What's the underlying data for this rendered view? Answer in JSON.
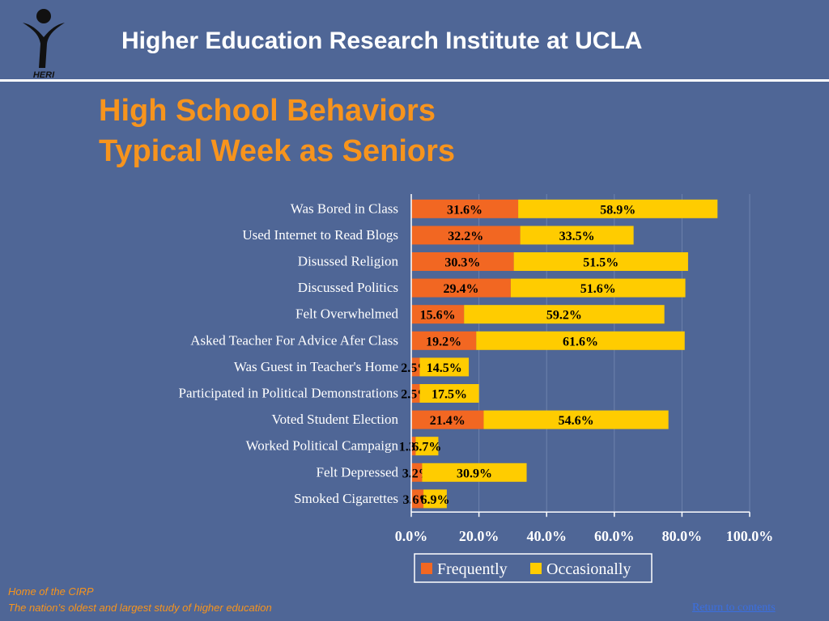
{
  "header": {
    "title": "Higher Education Research Institute at UCLA",
    "logo_text": "HERI"
  },
  "slide": {
    "title_line1": "High School Behaviors",
    "title_line2": "Typical Week as Seniors"
  },
  "colors": {
    "background": "#4f6696",
    "title": "#f7941d",
    "frequently": "#f26722",
    "occasionally": "#ffcc00"
  },
  "chart_data": {
    "type": "bar",
    "orientation": "horizontal",
    "stacked": true,
    "categories": [
      "Was Bored in Class",
      "Used Internet to Read Blogs",
      "Disussed Religion",
      "Discussed Politics",
      "Felt Overwhelmed",
      "Asked Teacher For Advice Afer Class",
      "Was Guest in Teacher's Home",
      "Participated in Political Demonstrations",
      "Voted Student Election",
      "Worked Political Campaign",
      "Felt Depressed",
      "Smoked Cigarettes"
    ],
    "series": [
      {
        "name": "Frequently",
        "values": [
          31.6,
          32.2,
          30.3,
          29.4,
          15.6,
          19.2,
          2.5,
          2.5,
          21.4,
          1.3,
          3.2,
          3.6
        ]
      },
      {
        "name": "Occasionally",
        "values": [
          58.9,
          33.5,
          51.5,
          51.6,
          59.2,
          61.6,
          14.5,
          17.5,
          54.6,
          6.7,
          30.9,
          6.9
        ]
      }
    ],
    "xlim": [
      0,
      100
    ],
    "xticks": [
      "0.0%",
      "20.0%",
      "40.0%",
      "60.0%",
      "80.0%",
      "100.0%"
    ],
    "value_suffix": "%",
    "grid": true,
    "legend_position": "bottom"
  },
  "footer": {
    "line1": "Home of the CIRP",
    "line2": "The nation’s oldest and largest study of higher education",
    "return_link": "Return to contents"
  }
}
